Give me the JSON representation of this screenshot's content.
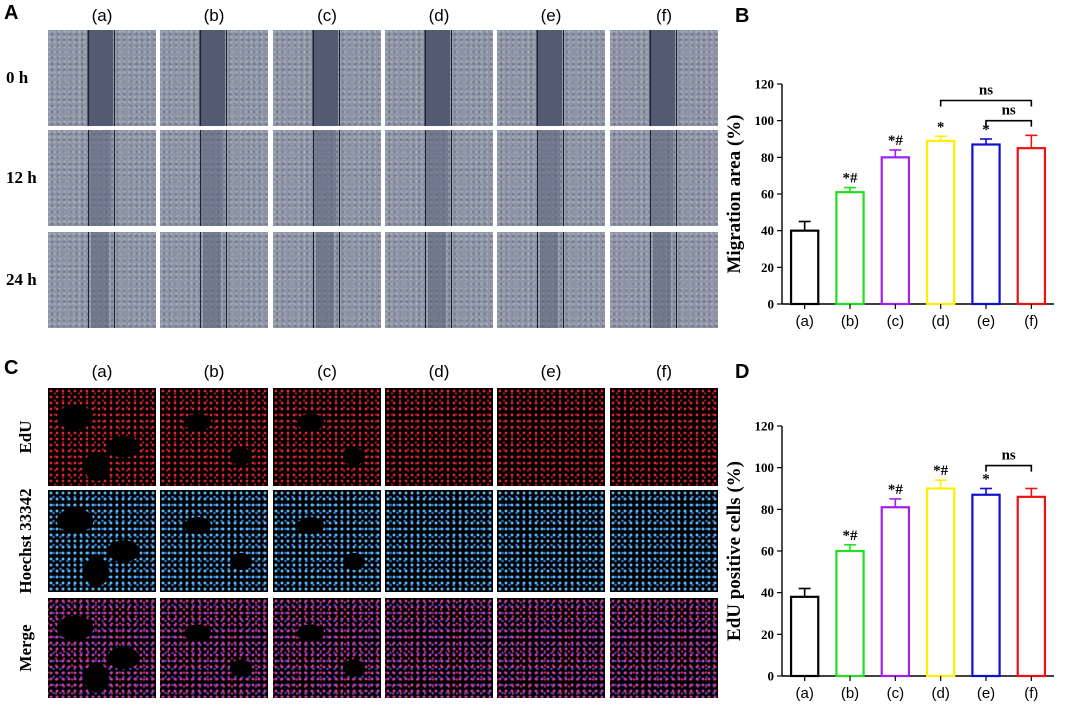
{
  "panels": {
    "A": {
      "letter": "A"
    },
    "B": {
      "letter": "B"
    },
    "C": {
      "letter": "C"
    },
    "D": {
      "letter": "D"
    }
  },
  "groups": [
    "(a)",
    "(b)",
    "(c)",
    "(d)",
    "(e)",
    "(f)"
  ],
  "scratch_rows": [
    "0 h",
    "12 h",
    "24 h"
  ],
  "stain_rows": [
    "EdU",
    "Hoechst 33342",
    "Merge"
  ],
  "colors": {
    "a": "#000000",
    "b": "#22dd22",
    "c": "#a020f0",
    "d": "#ffee00",
    "e": "#1010d0",
    "f": "#ee1111"
  },
  "chart_data": [
    {
      "panel": "B",
      "type": "bar",
      "categories": [
        "(a)",
        "(b)",
        "(c)",
        "(d)",
        "(e)",
        "(f)"
      ],
      "values": [
        40,
        61,
        80,
        89,
        87,
        85
      ],
      "errors": [
        5,
        2.5,
        4,
        2.5,
        3,
        7
      ],
      "bar_colors": [
        "#000000",
        "#22dd22",
        "#a020f0",
        "#ffee00",
        "#1010d0",
        "#ee1111"
      ],
      "annotations": [
        "",
        "*#",
        "*#",
        "*",
        "*",
        ""
      ],
      "brackets": [
        {
          "from": 3,
          "to": 5,
          "value": 111,
          "label": "ns"
        },
        {
          "from": 4,
          "to": 5,
          "value": 100,
          "label": "ns"
        }
      ],
      "ylabel": "Migration area (%)",
      "ylim": [
        0,
        120
      ],
      "yticks": [
        0,
        20,
        40,
        60,
        80,
        100,
        120
      ],
      "grid": false
    },
    {
      "panel": "D",
      "type": "bar",
      "categories": [
        "(a)",
        "(b)",
        "(c)",
        "(d)",
        "(e)",
        "(f)"
      ],
      "values": [
        38,
        60,
        81,
        90,
        87,
        86
      ],
      "errors": [
        4,
        3,
        4,
        4,
        3,
        4
      ],
      "bar_colors": [
        "#000000",
        "#22dd22",
        "#a020f0",
        "#ffee00",
        "#1010d0",
        "#ee1111"
      ],
      "annotations": [
        "",
        "*#",
        "*#",
        "*#",
        "*",
        ""
      ],
      "brackets": [
        {
          "from": 4,
          "to": 5,
          "value": 101,
          "label": "ns"
        }
      ],
      "ylabel": "EdU positive cells (%)",
      "ylim": [
        0,
        120
      ],
      "yticks": [
        0,
        20,
        40,
        60,
        80,
        100,
        120
      ],
      "grid": false
    }
  ]
}
